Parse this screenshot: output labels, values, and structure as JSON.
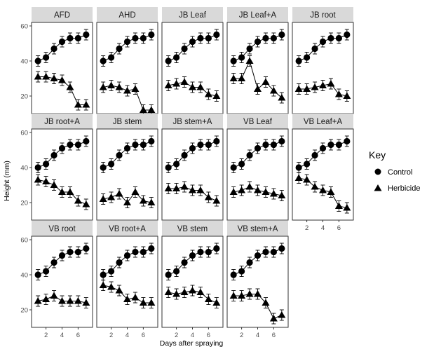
{
  "chart_data": {
    "type": "line",
    "facet_layout": "3 rows x 5 columns",
    "xlabel": "Days after spraying",
    "ylabel": "Height (mm)",
    "x": [
      1,
      2,
      3,
      4,
      5,
      6,
      7
    ],
    "xticks": [
      2,
      4,
      6
    ],
    "xlim": [
      0.2,
      7.8
    ],
    "yticks": [
      20,
      40,
      60
    ],
    "ylim": [
      10,
      62
    ],
    "grid": false,
    "legend": {
      "title": "Key",
      "position": "right",
      "entries": [
        {
          "label": "Control",
          "marker": "circle"
        },
        {
          "label": "Herbicide",
          "marker": "triangle"
        }
      ]
    },
    "control_series": {
      "name": "Control",
      "values": [
        40,
        42,
        47,
        51,
        53,
        53,
        55
      ],
      "error": [
        3,
        3,
        3,
        3,
        3,
        3,
        3
      ]
    },
    "panels": [
      {
        "title": "AFD",
        "herbicide": [
          31,
          31,
          30,
          29,
          25,
          15,
          15
        ]
      },
      {
        "title": "AHD",
        "herbicide": [
          25,
          26,
          25,
          23,
          24,
          12,
          12
        ]
      },
      {
        "title": "JB Leaf",
        "herbicide": [
          26,
          27,
          28,
          25,
          25,
          21,
          20
        ]
      },
      {
        "title": "JB Leaf+A",
        "herbicide": [
          30,
          30,
          40,
          24,
          28,
          23,
          19
        ]
      },
      {
        "title": "JB root",
        "herbicide": [
          24,
          24,
          25,
          26,
          27,
          21,
          20
        ]
      },
      {
        "title": "JB root+A",
        "herbicide": [
          33,
          32,
          30,
          26,
          26,
          21,
          19
        ]
      },
      {
        "title": "JB stem",
        "herbicide": [
          22,
          23,
          25,
          20,
          26,
          21,
          20
        ]
      },
      {
        "title": "JB stem+A",
        "herbicide": [
          28,
          28,
          29,
          27,
          27,
          23,
          21
        ]
      },
      {
        "title": "VB Leaf",
        "herbicide": [
          26,
          27,
          29,
          27,
          26,
          25,
          24
        ]
      },
      {
        "title": "VB Leaf+A",
        "herbicide": [
          34,
          33,
          29,
          27,
          26,
          18,
          17
        ]
      },
      {
        "title": "VB root",
        "herbicide": [
          25,
          26,
          28,
          25,
          25,
          25,
          24
        ]
      },
      {
        "title": "VB root+A",
        "herbicide": [
          34,
          33,
          31,
          26,
          27,
          24,
          24
        ]
      },
      {
        "title": "VB stem",
        "herbicide": [
          30,
          29,
          30,
          31,
          30,
          26,
          24
        ]
      },
      {
        "title": "VB stem+A",
        "herbicide": [
          28,
          28,
          29,
          29,
          24,
          15,
          17
        ]
      }
    ],
    "herbicide_error": 3
  }
}
